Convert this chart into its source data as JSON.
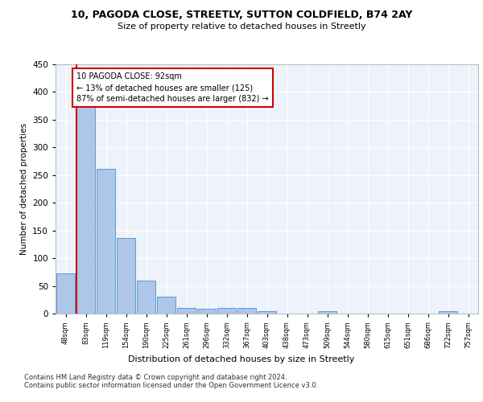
{
  "title_line1": "10, PAGODA CLOSE, STREETLY, SUTTON COLDFIELD, B74 2AY",
  "title_line2": "Size of property relative to detached houses in Streetly",
  "xlabel": "Distribution of detached houses by size in Streetly",
  "ylabel": "Number of detached properties",
  "categories": [
    "48sqm",
    "83sqm",
    "119sqm",
    "154sqm",
    "190sqm",
    "225sqm",
    "261sqm",
    "296sqm",
    "332sqm",
    "367sqm",
    "403sqm",
    "438sqm",
    "473sqm",
    "509sqm",
    "544sqm",
    "580sqm",
    "615sqm",
    "651sqm",
    "686sqm",
    "722sqm",
    "757sqm"
  ],
  "values": [
    72,
    378,
    262,
    136,
    60,
    30,
    10,
    9,
    10,
    10,
    5,
    0,
    0,
    4,
    0,
    0,
    0,
    0,
    0,
    4,
    0
  ],
  "highlight_index": 1,
  "bar_color": "#aec6e8",
  "bar_edge_color": "#5b9bd5",
  "highlight_bar_edge_color": "#cc0000",
  "highlight_line_color": "#cc0000",
  "annotation_text": "10 PAGODA CLOSE: 92sqm\n← 13% of detached houses are smaller (125)\n87% of semi-detached houses are larger (832) →",
  "annotation_box_color": "#ffffff",
  "annotation_box_edge": "#cc0000",
  "ylim": [
    0,
    450
  ],
  "yticks": [
    0,
    50,
    100,
    150,
    200,
    250,
    300,
    350,
    400,
    450
  ],
  "background_color": "#eef2fb",
  "grid_color": "#ffffff",
  "footer_line1": "Contains HM Land Registry data © Crown copyright and database right 2024.",
  "footer_line2": "Contains public sector information licensed under the Open Government Licence v3.0."
}
